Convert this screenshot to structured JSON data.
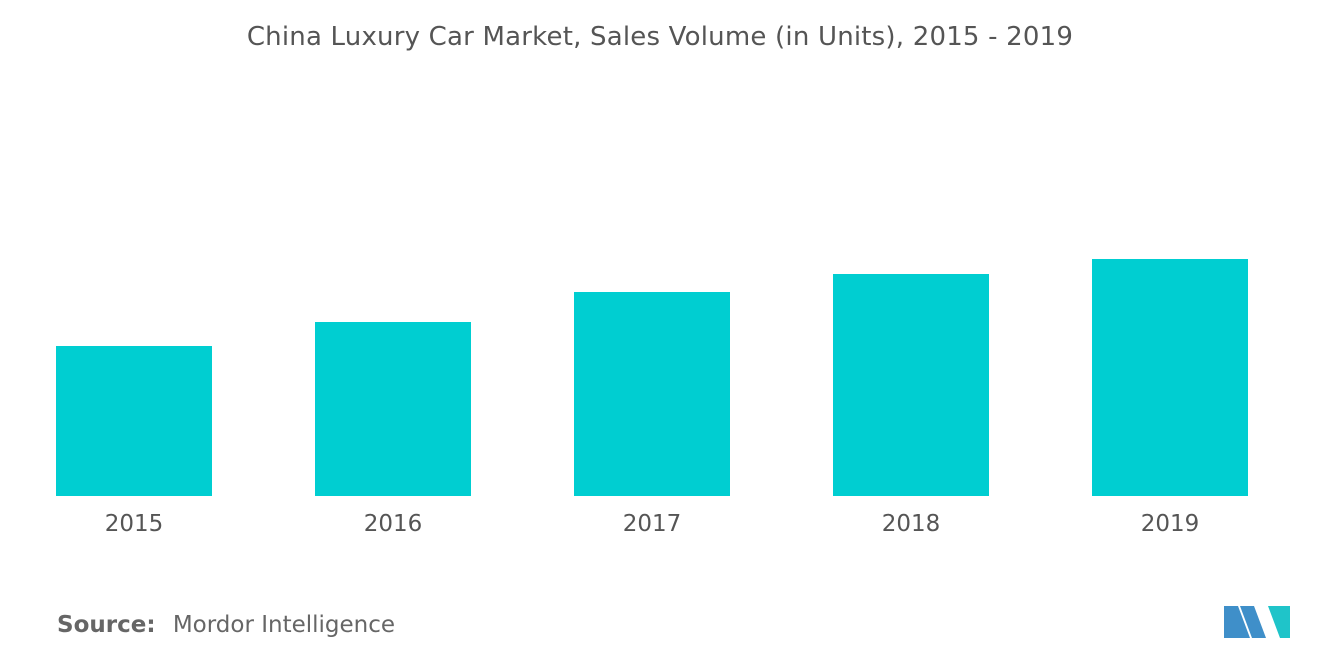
{
  "chart_data": {
    "type": "bar",
    "title": "China Luxury Car Market, Sales Volume (in Units), 2015 - 2019",
    "categories": [
      "2015",
      "2016",
      "2017",
      "2018",
      "2019"
    ],
    "values": [
      50,
      58,
      68,
      74,
      79
    ],
    "xlabel": "",
    "ylabel": "",
    "ylim": [
      0,
      100
    ],
    "grid": false,
    "legend": "none",
    "colors": {
      "bar": "#00CED1"
    }
  },
  "footer": {
    "source_label": "Source:",
    "source_value": "Mordor Intelligence"
  },
  "colors": {
    "logo_left": "#3F8FC9",
    "logo_right": "#1FC4C9"
  }
}
